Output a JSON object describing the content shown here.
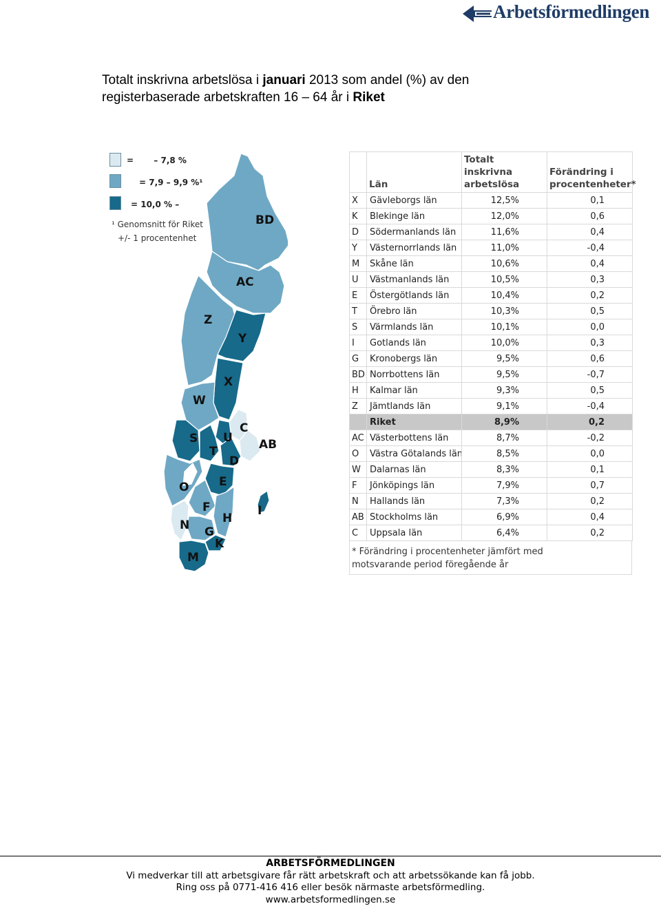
{
  "logo": {
    "text": "Arbetsförmedlingen"
  },
  "title": {
    "line1_pre": "Totalt inskrivna arbetslösa i ",
    "line1_bold": "januari",
    "line1_post": " 2013 som andel (%) av den",
    "line2_pre": "registerbaserade arbetskraften 16 – 64 år i ",
    "line2_bold": "Riket"
  },
  "legend": {
    "items": [
      {
        "label": "=       – 7,8 %",
        "color": "#dbe9f0"
      },
      {
        "label": "= 7,9 – 9,9 %¹",
        "color": "#6fa8c4"
      },
      {
        "label": "= 10,0 % –",
        "color": "#176a8a"
      }
    ],
    "footnote1": "¹ Genomsnitt för Riket",
    "footnote2": "+/- 1 procentenhet"
  },
  "map": {
    "labels": [
      "BD",
      "AC",
      "Z",
      "Y",
      "X",
      "W",
      "C",
      "U",
      "AB",
      "S",
      "T",
      "D",
      "O",
      "E",
      "I",
      "F",
      "H",
      "N",
      "G",
      "K",
      "M"
    ]
  },
  "table": {
    "headers": {
      "lan": "Län",
      "total": "Totalt inskrivna arbetslösa",
      "change": "Förändring i procentenheter*"
    },
    "rows": [
      {
        "code": "X",
        "name": "Gävleborgs län",
        "total": "12,5%",
        "change": "0,1"
      },
      {
        "code": "K",
        "name": "Blekinge län",
        "total": "12,0%",
        "change": "0,6"
      },
      {
        "code": "D",
        "name": "Södermanlands län",
        "total": "11,6%",
        "change": "0,4"
      },
      {
        "code": "Y",
        "name": "Västernorrlands län",
        "total": "11,0%",
        "change": "-0,4"
      },
      {
        "code": "M",
        "name": "Skåne län",
        "total": "10,6%",
        "change": "0,4"
      },
      {
        "code": "U",
        "name": "Västmanlands län",
        "total": "10,5%",
        "change": "0,3"
      },
      {
        "code": "E",
        "name": "Östergötlands län",
        "total": "10,4%",
        "change": "0,2"
      },
      {
        "code": "T",
        "name": "Örebro län",
        "total": "10,3%",
        "change": "0,5"
      },
      {
        "code": "S",
        "name": "Värmlands län",
        "total": "10,1%",
        "change": "0,0"
      },
      {
        "code": "I",
        "name": "Gotlands län",
        "total": "10,0%",
        "change": "0,3"
      },
      {
        "code": "G",
        "name": "Kronobergs län",
        "total": "9,5%",
        "change": "0,6"
      },
      {
        "code": "BD",
        "name": "Norrbottens län",
        "total": "9,5%",
        "change": "-0,7"
      },
      {
        "code": "H",
        "name": "Kalmar län",
        "total": "9,3%",
        "change": "0,5"
      },
      {
        "code": "Z",
        "name": "Jämtlands län",
        "total": "9,1%",
        "change": "-0,4"
      },
      {
        "code": "",
        "name": "Riket",
        "total": "8,9%",
        "change": "0,2",
        "highlight": true
      },
      {
        "code": "AC",
        "name": "Västerbottens län",
        "total": "8,7%",
        "change": "-0,2"
      },
      {
        "code": "O",
        "name": "Västra Götalands län",
        "total": "8,5%",
        "change": "0,0"
      },
      {
        "code": "W",
        "name": "Dalarnas län",
        "total": "8,3%",
        "change": "0,1"
      },
      {
        "code": "F",
        "name": "Jönköpings län",
        "total": "7,9%",
        "change": "0,7"
      },
      {
        "code": "N",
        "name": "Hallands län",
        "total": "7,3%",
        "change": "0,2"
      },
      {
        "code": "AB",
        "name": "Stockholms län",
        "total": "6,9%",
        "change": "0,4"
      },
      {
        "code": "C",
        "name": "Uppsala län",
        "total": "6,4%",
        "change": "0,2"
      }
    ],
    "note_line1": "* Förändring i procentenheter jämfört med",
    "note_line2": "motsvarande period föregående år"
  },
  "footer": {
    "org": "ARBETSFÖRMEDLINGEN",
    "line1": "Vi medverkar till att arbetsgivare får rätt arbetskraft och att arbetssökande kan få jobb.",
    "line2": "Ring oss på 0771-416 416 eller besök närmaste arbetsförmedling.",
    "url": "www.arbetsformedlingen.se"
  },
  "colors": {
    "light": "#dbe9f0",
    "mid": "#6fa8c4",
    "dark": "#176a8a",
    "brand": "#1f3c66"
  }
}
